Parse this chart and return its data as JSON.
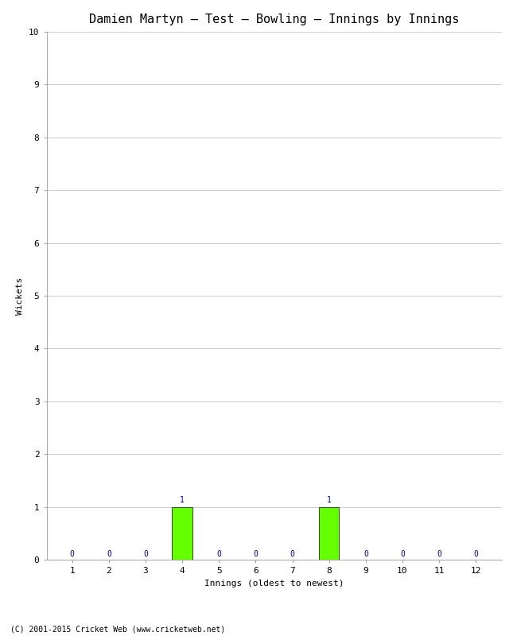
{
  "title": "Damien Martyn – Test – Bowling – Innings by Innings",
  "xlabel": "Innings (oldest to newest)",
  "ylabel": "Wickets",
  "innings": [
    1,
    2,
    3,
    4,
    5,
    6,
    7,
    8,
    9,
    10,
    11,
    12
  ],
  "wickets": [
    0,
    0,
    0,
    1,
    0,
    0,
    0,
    1,
    0,
    0,
    0,
    0
  ],
  "bar_color_nonzero": "#66ff00",
  "label_color": "#000080",
  "ylim": [
    0,
    10
  ],
  "yticks": [
    0,
    1,
    2,
    3,
    4,
    5,
    6,
    7,
    8,
    9,
    10
  ],
  "xticks": [
    1,
    2,
    3,
    4,
    5,
    6,
    7,
    8,
    9,
    10,
    11,
    12
  ],
  "background_color": "#ffffff",
  "grid_color": "#cccccc",
  "title_fontsize": 11,
  "label_fontsize": 8,
  "tick_fontsize": 8,
  "annotation_fontsize": 7,
  "footer": "(C) 2001-2015 Cricket Web (www.cricketweb.net)",
  "footer_fontsize": 7,
  "bar_width": 0.55
}
